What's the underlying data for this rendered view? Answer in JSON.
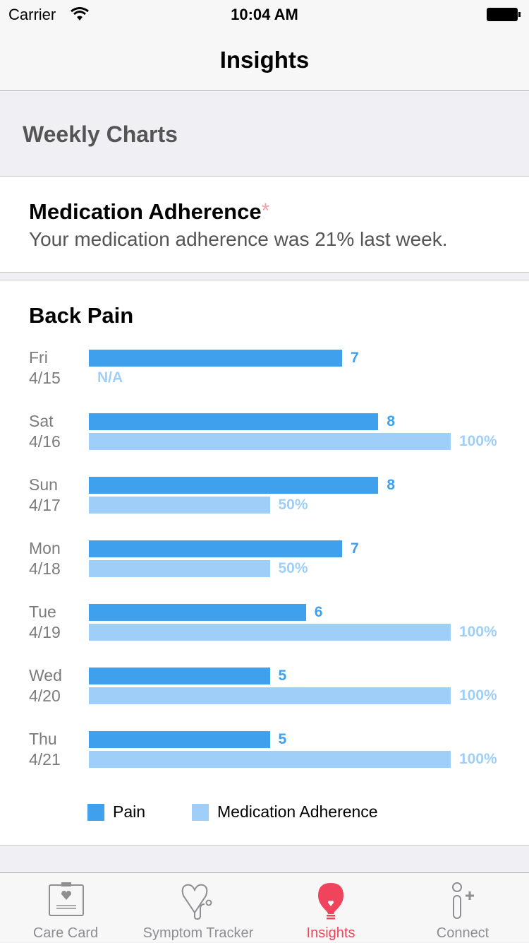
{
  "status": {
    "carrier": "Carrier",
    "time": "10:04 AM"
  },
  "nav": {
    "title": "Insights"
  },
  "section": "Weekly Charts",
  "adherence_card": {
    "title": "Medication Adherence",
    "asterisk": "*",
    "subtitle": "Your medication adherence was 21% last week."
  },
  "colors": {
    "pain": "#3fa1ee",
    "adherence": "#9fcff8",
    "accent": "#f0435c",
    "asterisk": "#f0a0ab"
  },
  "chart_data": {
    "type": "bar",
    "title": "Back Pain",
    "categories": [
      [
        "Fri",
        "4/15"
      ],
      [
        "Sat",
        "4/16"
      ],
      [
        "Sun",
        "4/17"
      ],
      [
        "Mon",
        "4/18"
      ],
      [
        "Tue",
        "4/19"
      ],
      [
        "Wed",
        "4/20"
      ],
      [
        "Thu",
        "4/21"
      ]
    ],
    "series": [
      {
        "name": "Pain",
        "values": [
          7,
          8,
          8,
          7,
          6,
          5,
          5
        ],
        "labels": [
          "7",
          "8",
          "8",
          "7",
          "6",
          "5",
          "5"
        ],
        "max": 10
      },
      {
        "name": "Medication Adherence",
        "values": [
          null,
          100,
          50,
          50,
          100,
          100,
          100
        ],
        "labels": [
          "N/A",
          "100%",
          "50%",
          "50%",
          "100%",
          "100%",
          "100%"
        ],
        "max": 100
      }
    ],
    "legend": "bottom"
  },
  "tabs": [
    {
      "label": "Care Card",
      "icon": "clipboard-heart-icon",
      "active": false
    },
    {
      "label": "Symptom Tracker",
      "icon": "stethoscope-icon",
      "active": false
    },
    {
      "label": "Insights",
      "icon": "lightbulb-heart-icon",
      "active": true
    },
    {
      "label": "Connect",
      "icon": "person-add-icon",
      "active": false
    }
  ]
}
